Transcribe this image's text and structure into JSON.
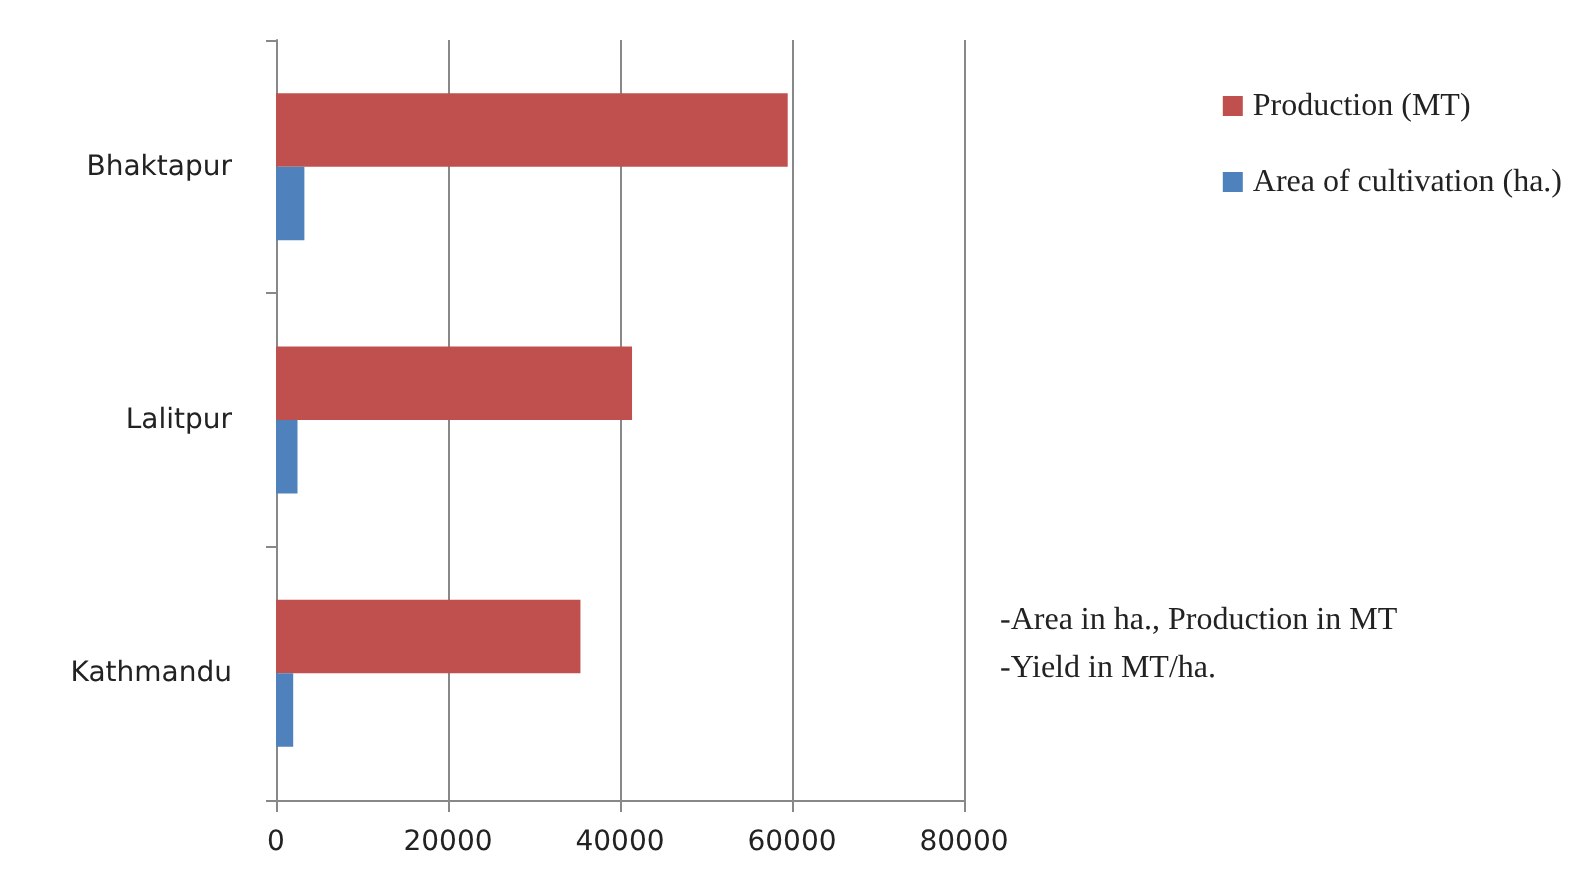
{
  "chart_data": {
    "type": "bar",
    "orientation": "horizontal",
    "categories": [
      "Bhaktapur",
      "Lalitpur",
      "Kathmandu"
    ],
    "series": [
      {
        "name": "Production (MT)",
        "color": "#c0504d",
        "values": [
          59500,
          41400,
          35400
        ]
      },
      {
        "name": "Area of cultivation (ha.)",
        "color": "#4f81bd",
        "values": [
          3300,
          2500,
          2000
        ]
      }
    ],
    "xlim": [
      0,
      80000
    ],
    "xticks": [
      0,
      20000,
      40000,
      60000,
      80000
    ],
    "grid": "x",
    "legend": "right",
    "annotations": [
      "-Area in ha., Production in MT",
      "-Yield in MT/ha."
    ]
  }
}
